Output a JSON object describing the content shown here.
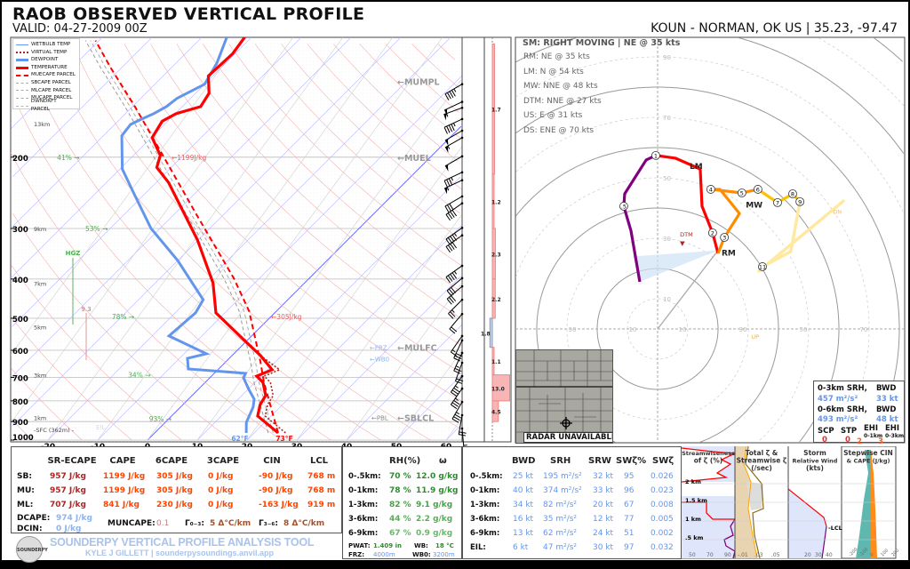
{
  "header": {
    "title": "RAOB OBSERVED VERTICAL PROFILE",
    "valid": "VALID: 04-27-2009 00Z",
    "station": "KOUN - NORMAN, OK US | 35.23, -97.47"
  },
  "legend": [
    "WETBULB TEMP",
    "VIRTUAL TEMP",
    "DEWPOINT",
    "TEMPERATURE",
    "MUECAPE PARCEL",
    "SBCAPE PARCEL",
    "MLCAPE PARCEL",
    "MUCAPE PARCEL",
    "DWNDRFT PARCEL"
  ],
  "colors": {
    "temperature": "#ff0000",
    "dewpoint": "#6495ed",
    "parcel": "#ff0000",
    "isotherm": "#b4b4ff",
    "isobar": "#bbbbbb",
    "dry_adiabat": "#f4b0b0",
    "rh": "#4caf50",
    "hodo_0_1": "#800080",
    "hodo_1_3": "#ff0000",
    "hodo_3_6": "#ff8c00",
    "hodo_6_9": "#ffc000",
    "hodo_9_11": "#ffe9a0",
    "kinematic": "#6495ed"
  },
  "skewt": {
    "x_ticks": [
      "-20",
      "-10",
      "0",
      "10",
      "20",
      "30",
      "40",
      "50",
      "60"
    ],
    "x_tick_values": [
      -20,
      -10,
      0,
      10,
      20,
      30,
      40,
      50,
      60
    ],
    "p_ticks": [
      "1000",
      "900",
      "800",
      "700",
      "600",
      "500",
      "400",
      "300",
      "200"
    ],
    "p_tick_values": [
      1000,
      900,
      800,
      700,
      600,
      500,
      400,
      300,
      200
    ],
    "heights": [
      {
        "label": "1km",
        "p": 880
      },
      {
        "label": "3km",
        "p": 690
      },
      {
        "label": "5km",
        "p": 525
      },
      {
        "label": "7km",
        "p": 410
      },
      {
        "label": "9km",
        "p": 300
      },
      {
        "label": "13km",
        "p": 165
      }
    ],
    "sfc_label": "-SFC (362m) -",
    "eil_label": "EIL",
    "hgz_label": "HGZ",
    "lapse_label": "9.3",
    "rh_labels": [
      {
        "text": "41% →",
        "p": 200,
        "T": -75
      },
      {
        "text": "53% →",
        "p": 300,
        "T": -55
      },
      {
        "text": "78% →",
        "p": 495,
        "T": -32
      },
      {
        "text": "34% →",
        "p": 690,
        "T": -17
      },
      {
        "text": "93% →",
        "p": 885,
        "T": -4
      }
    ],
    "cape_labels": [
      {
        "text": "←1199J/kg",
        "p": 200,
        "T": -52
      },
      {
        "text": "←305J/kg",
        "p": 495,
        "T": 0
      }
    ],
    "sfc_dewpoint": "62°F",
    "sfc_temp": "73°F",
    "levels": [
      {
        "text": "←MUMPL",
        "p": 130
      },
      {
        "text": "←MUEL",
        "p": 200
      },
      {
        "text": "←MULFC",
        "p": 590
      },
      {
        "text": "←SBLCL",
        "p": 880
      }
    ],
    "small_levels": [
      {
        "text": "←FRZ",
        "p": 590,
        "color": "#8fb3ea"
      },
      {
        "text": "←WB0",
        "p": 630,
        "color": "#8fb3ea"
      },
      {
        "text": "←PBL",
        "p": 880,
        "color": "#888888"
      }
    ],
    "temperature": [
      [
        960,
        24.8
      ],
      [
        872,
        17.3
      ],
      [
        817,
        15.5
      ],
      [
        776,
        14.8
      ],
      [
        720,
        11.6
      ],
      [
        695,
        9.1
      ],
      [
        670,
        10.9
      ],
      [
        618,
        5.7
      ],
      [
        573,
        0.2
      ],
      [
        485,
        -11.8
      ],
      [
        409,
        -18.4
      ],
      [
        320,
        -30.2
      ],
      [
        231,
        -47.5
      ],
      [
        212,
        -52.9
      ],
      [
        198,
        -54.6
      ],
      [
        179,
        -59.8
      ],
      [
        163,
        -61.1
      ],
      [
        156,
        -59.8
      ],
      [
        150,
        -56.3
      ],
      [
        139,
        -57.3
      ],
      [
        126,
        -60.9
      ],
      [
        111,
        -60.5
      ],
      [
        101,
        -61.4
      ]
    ],
    "dewpoint": [
      [
        960,
        18.4
      ],
      [
        904,
        16.3
      ],
      [
        829,
        14.6
      ],
      [
        792,
        13.2
      ],
      [
        750,
        10.2
      ],
      [
        702,
        6.8
      ],
      [
        684,
        6.3
      ],
      [
        667,
        -6.1
      ],
      [
        628,
        -8.4
      ],
      [
        612,
        -5.5
      ],
      [
        553,
        -16.6
      ],
      [
        485,
        -15.9
      ],
      [
        450,
        -17.0
      ],
      [
        413,
        -22.0
      ],
      [
        360,
        -30.0
      ],
      [
        300,
        -41.8
      ],
      [
        249,
        -51.6
      ],
      [
        214,
        -59.5
      ],
      [
        177,
        -66.3
      ],
      [
        166,
        -66.8
      ],
      [
        162,
        -65.9
      ],
      [
        156,
        -64.3
      ],
      [
        150,
        -63.2
      ],
      [
        143,
        -62.7
      ],
      [
        132,
        -60.0
      ],
      [
        117,
        -61.8
      ],
      [
        101,
        -65.0
      ]
    ],
    "mu_parcel": [
      [
        960,
        24.8
      ],
      [
        720,
        11.8
      ],
      [
        641,
        7.0
      ],
      [
        480,
        -5.5
      ],
      [
        398,
        -15.2
      ],
      [
        275,
        -35.9
      ],
      [
        193,
        -55.5
      ],
      [
        150,
        -69.5
      ],
      [
        120,
        -82.3
      ],
      [
        103,
        -90.7
      ]
    ],
    "winds": [
      [
        132,
        240,
        45
      ],
      [
        146,
        245,
        50
      ],
      [
        151,
        250,
        55
      ],
      [
        161,
        245,
        45
      ],
      [
        172,
        240,
        50
      ],
      [
        179,
        240,
        55
      ],
      [
        199,
        240,
        50
      ],
      [
        218,
        245,
        35
      ],
      [
        228,
        245,
        55
      ],
      [
        250,
        240,
        30
      ],
      [
        260,
        235,
        40
      ],
      [
        299,
        235,
        45
      ],
      [
        312,
        235,
        40
      ],
      [
        371,
        235,
        45
      ],
      [
        398,
        230,
        30
      ],
      [
        417,
        230,
        30
      ],
      [
        450,
        225,
        25
      ],
      [
        488,
        220,
        20
      ],
      [
        553,
        215,
        15
      ],
      [
        567,
        205,
        30
      ],
      [
        609,
        205,
        25
      ],
      [
        644,
        200,
        20
      ],
      [
        695,
        215,
        35
      ],
      [
        746,
        215,
        35
      ],
      [
        805,
        210,
        35
      ],
      [
        868,
        190,
        20
      ],
      [
        936,
        175,
        15
      ]
    ],
    "inflow": [
      {
        "value": "1.7",
        "top": 105,
        "bottom": 220,
        "v": 1.7
      },
      {
        "value": "1.2",
        "top": 220,
        "bottom": 300,
        "v": 1.2
      },
      {
        "value": "2.3",
        "top": 300,
        "bottom": 400,
        "v": 2.3
      },
      {
        "value": "2.2",
        "top": 400,
        "bottom": 500,
        "v": 2.2
      },
      {
        "value": "1.8",
        "top": 500,
        "bottom": 590,
        "v": -1.8
      },
      {
        "value": "1.1",
        "top": 590,
        "bottom": 690,
        "v": 1.1
      },
      {
        "value": "13.0",
        "top": 690,
        "bottom": 800,
        "v": 13.0
      },
      {
        "value": "4.5",
        "top": 800,
        "bottom": 900,
        "v": 4.5
      }
    ]
  },
  "hodograph": {
    "ring_labels": [
      "10",
      "30",
      "50",
      "70",
      "90"
    ],
    "storm_motion_title": "SM: RIGHT MOVING | NE @ 35 kts",
    "motions": [
      "RM: NE @ 35 kts",
      "LM: N @ 54 kts",
      "MW: NNE @ 48 kts",
      "DTM: NNE @ 27 kts",
      "US: E @ 31 kts",
      "DS: ENE @ 70 kts"
    ],
    "segments": [
      {
        "layer": "0-1km",
        "color": "#800080",
        "uv": [
          [
            -5.9,
            15.6
          ],
          [
            -8.8,
            32.4
          ],
          [
            -11.2,
            40.6
          ],
          [
            -10.9,
            44.7
          ],
          [
            -3.8,
            55.9
          ],
          [
            -0.6,
            57.4
          ]
        ]
      },
      {
        "layer": "1-3km",
        "color": "#ff0000",
        "uv": [
          [
            -0.6,
            57.4
          ],
          [
            5.9,
            56.5
          ],
          [
            14.1,
            52.9
          ],
          [
            14.7,
            40.6
          ],
          [
            18.2,
            31.8
          ],
          [
            20,
            25
          ]
        ]
      },
      {
        "layer": "3-6km",
        "color": "#ff8c00",
        "uv": [
          [
            20,
            25
          ],
          [
            22.1,
            30.3
          ],
          [
            27.1,
            38.2
          ],
          [
            20.6,
            46.2
          ],
          [
            17.6,
            46.2
          ],
          [
            27.9,
            45
          ],
          [
            33.2,
            46.2
          ]
        ]
      },
      {
        "layer": "6-9km",
        "color": "#ffc000",
        "uv": [
          [
            33.2,
            46.2
          ],
          [
            39.7,
            41.8
          ],
          [
            44.7,
            44.7
          ],
          [
            47.1,
            42.1
          ]
        ]
      },
      {
        "layer": "9-11km",
        "color": "#ffe9a0",
        "uv": [
          [
            47.1,
            42.1
          ],
          [
            44.1,
            25.6
          ],
          [
            34.7,
            20.6
          ],
          [
            33.5,
            19.1
          ],
          [
            44.1,
            27.9
          ],
          [
            61.8,
            42.6
          ]
        ]
      }
    ],
    "height_markers": [
      {
        "t": ".5",
        "uv": [
          -11.2,
          40.6
        ]
      },
      {
        "t": "1",
        "uv": [
          -0.6,
          57.4
        ]
      },
      {
        "t": "2",
        "uv": [
          18.2,
          31.8
        ]
      },
      {
        "t": "3",
        "uv": [
          22.1,
          30.3
        ]
      },
      {
        "t": "4",
        "uv": [
          17.6,
          46.2
        ]
      },
      {
        "t": "5",
        "uv": [
          27.9,
          45
        ]
      },
      {
        "t": "6",
        "uv": [
          33.2,
          46.2
        ]
      },
      {
        "t": "7",
        "uv": [
          39.7,
          41.8
        ]
      },
      {
        "t": "8",
        "uv": [
          44.7,
          44.7
        ]
      },
      {
        "t": "9",
        "uv": [
          47.1,
          42.1
        ]
      },
      {
        "t": "11",
        "uv": [
          34.7,
          20.6
        ]
      }
    ],
    "points": [
      {
        "t": "RM",
        "uv": [
          20,
          26
        ],
        "color": "#222222"
      },
      {
        "t": "LM",
        "uv": [
          9.4,
          53.8
        ],
        "color": "#222222"
      },
      {
        "t": "MW",
        "uv": [
          28,
          41
        ],
        "color": "#222222"
      },
      {
        "t": "DTM",
        "uv": [
          7.4,
          29.4
        ],
        "color": "#b22222"
      },
      {
        "t": "UP",
        "uv": [
          31,
          -2.4
        ],
        "color": "#f0b040"
      },
      {
        "t": "DN",
        "uv": [
          58,
          39
        ],
        "color": "#f0c060"
      }
    ],
    "radar_label": "RADAR UNAVAILABLE",
    "srh_box": {
      "h1": "0-3km SRH,",
      "bwd": "BWD",
      "srh03": "457 m²/s²",
      "bwd03": "33 kt",
      "h2": "0-6km SRH,",
      "srh06": "493 m²/s²",
      "bwd06": "48 kt",
      "scp_l": "SCP",
      "stp_l": "STP",
      "ehi_l": "EHI",
      "ehi1_sub": "0-1km",
      "ehi3_sub": "0-3km",
      "scp": "0",
      "stp": "0",
      "ehi1": "2",
      "ehi3": "3"
    }
  },
  "thermo": {
    "headers": [
      "SR-ECAPE",
      "CAPE",
      "6CAPE",
      "3CAPE",
      "CIN",
      "LCL"
    ],
    "rows": [
      {
        "label": "SB:",
        "vals": [
          "957 J/kg",
          "1199 J/kg",
          "305 J/kg",
          "0 J/kg",
          "-90 J/kg",
          "768 m"
        ]
      },
      {
        "label": "MU:",
        "vals": [
          "957 J/kg",
          "1199 J/kg",
          "305 J/kg",
          "0 J/kg",
          "-90 J/kg",
          "768 m"
        ]
      },
      {
        "label": "ML:",
        "vals": [
          "707 J/kg",
          "841 J/kg",
          "230 J/kg",
          "0 J/kg",
          "-163 J/kg",
          "919 m"
        ]
      }
    ],
    "dcape_l": "DCAPE:",
    "dcape": "974 J/kg",
    "dcin_l": "DCIN:",
    "dcin": "0 J/kg",
    "muncape_l": "MUNCAPE:",
    "muncape": "0.1",
    "lr03_l": "Γ₀₋₃:",
    "lr03": "5 Δ°C/km",
    "lr36_l": "Γ₃₋₆:",
    "lr36": "8 Δ°C/km"
  },
  "branding": {
    "title": "SOUNDERPY VERTICAL PROFILE ANALYSIS TOOL",
    "subtitle": "KYLE J GILLETT | sounderpysoundings.anvil.app",
    "logo": "SOUNDERPY"
  },
  "moisture": {
    "headers": [
      "RH(%)",
      "ω"
    ],
    "rows": [
      {
        "label": "0-.5km:",
        "rh": "70 %",
        "w": "12.0 g/kg"
      },
      {
        "label": "0-1km:",
        "rh": "78 %",
        "w": "11.9 g/kg"
      },
      {
        "label": "1-3km:",
        "rh": "82 %",
        "w": "9.1 g/kg"
      },
      {
        "label": "3-6km:",
        "rh": "44 %",
        "w": "2.2 g/kg"
      },
      {
        "label": "6-9km:",
        "rh": "67 %",
        "w": "0.9 g/kg"
      }
    ],
    "pwat_l": "PWAT:",
    "pwat": "1.409 in",
    "wb_l": "WB:",
    "wb": "18 °C",
    "frz_l": "FRZ:",
    "frz": "4000m",
    "wb0_l": "WB0:",
    "wb0": "3200m"
  },
  "kinematic": {
    "headers": [
      "BWD",
      "SRH",
      "SRW",
      "SWζ%",
      "SWζ"
    ],
    "rows": [
      {
        "label": "0-.5km:",
        "vals": [
          "25 kt",
          "195 m²/s²",
          "32 kt",
          "95",
          "0.026"
        ]
      },
      {
        "label": "0-1km:",
        "vals": [
          "40 kt",
          "374 m²/s²",
          "33 kt",
          "96",
          "0.023"
        ]
      },
      {
        "label": "1-3km:",
        "vals": [
          "34 kt",
          "82 m²/s²",
          "20 kt",
          "67",
          "0.008"
        ]
      },
      {
        "label": "3-6km:",
        "vals": [
          "16 kt",
          "35 m²/s²",
          "12 kt",
          "77",
          "0.005"
        ]
      },
      {
        "label": "6-9km:",
        "vals": [
          "13 kt",
          "62 m²/s²",
          "24 kt",
          "51",
          "0.002"
        ]
      },
      {
        "label": "EIL:",
        "vals": [
          "6 kt",
          "47 m²/s²",
          "30 kt",
          "97",
          "0.032"
        ]
      }
    ]
  },
  "mini": {
    "p1_title": "Streamwiseness of ζ (%)",
    "p1_ticks": [
      "50",
      "70",
      "90"
    ],
    "p2_title": "Total ζ & Streamwise ζ (/sec)",
    "p2_ticks": [
      "-.01",
      ".03",
      ".05"
    ],
    "p3_title": "Storm Relative Wind (kts)",
    "p3_ticks": [
      "20",
      "30",
      "40"
    ],
    "lcl": "-LCL",
    "p4_title": "Stepwise CIN & CAPE (J/kg)",
    "p4_ticks": [
      "-200",
      "-100",
      "0",
      "100",
      "200"
    ],
    "heights": [
      "2 km",
      "1.5 km",
      "1 km",
      ".5 km"
    ]
  }
}
